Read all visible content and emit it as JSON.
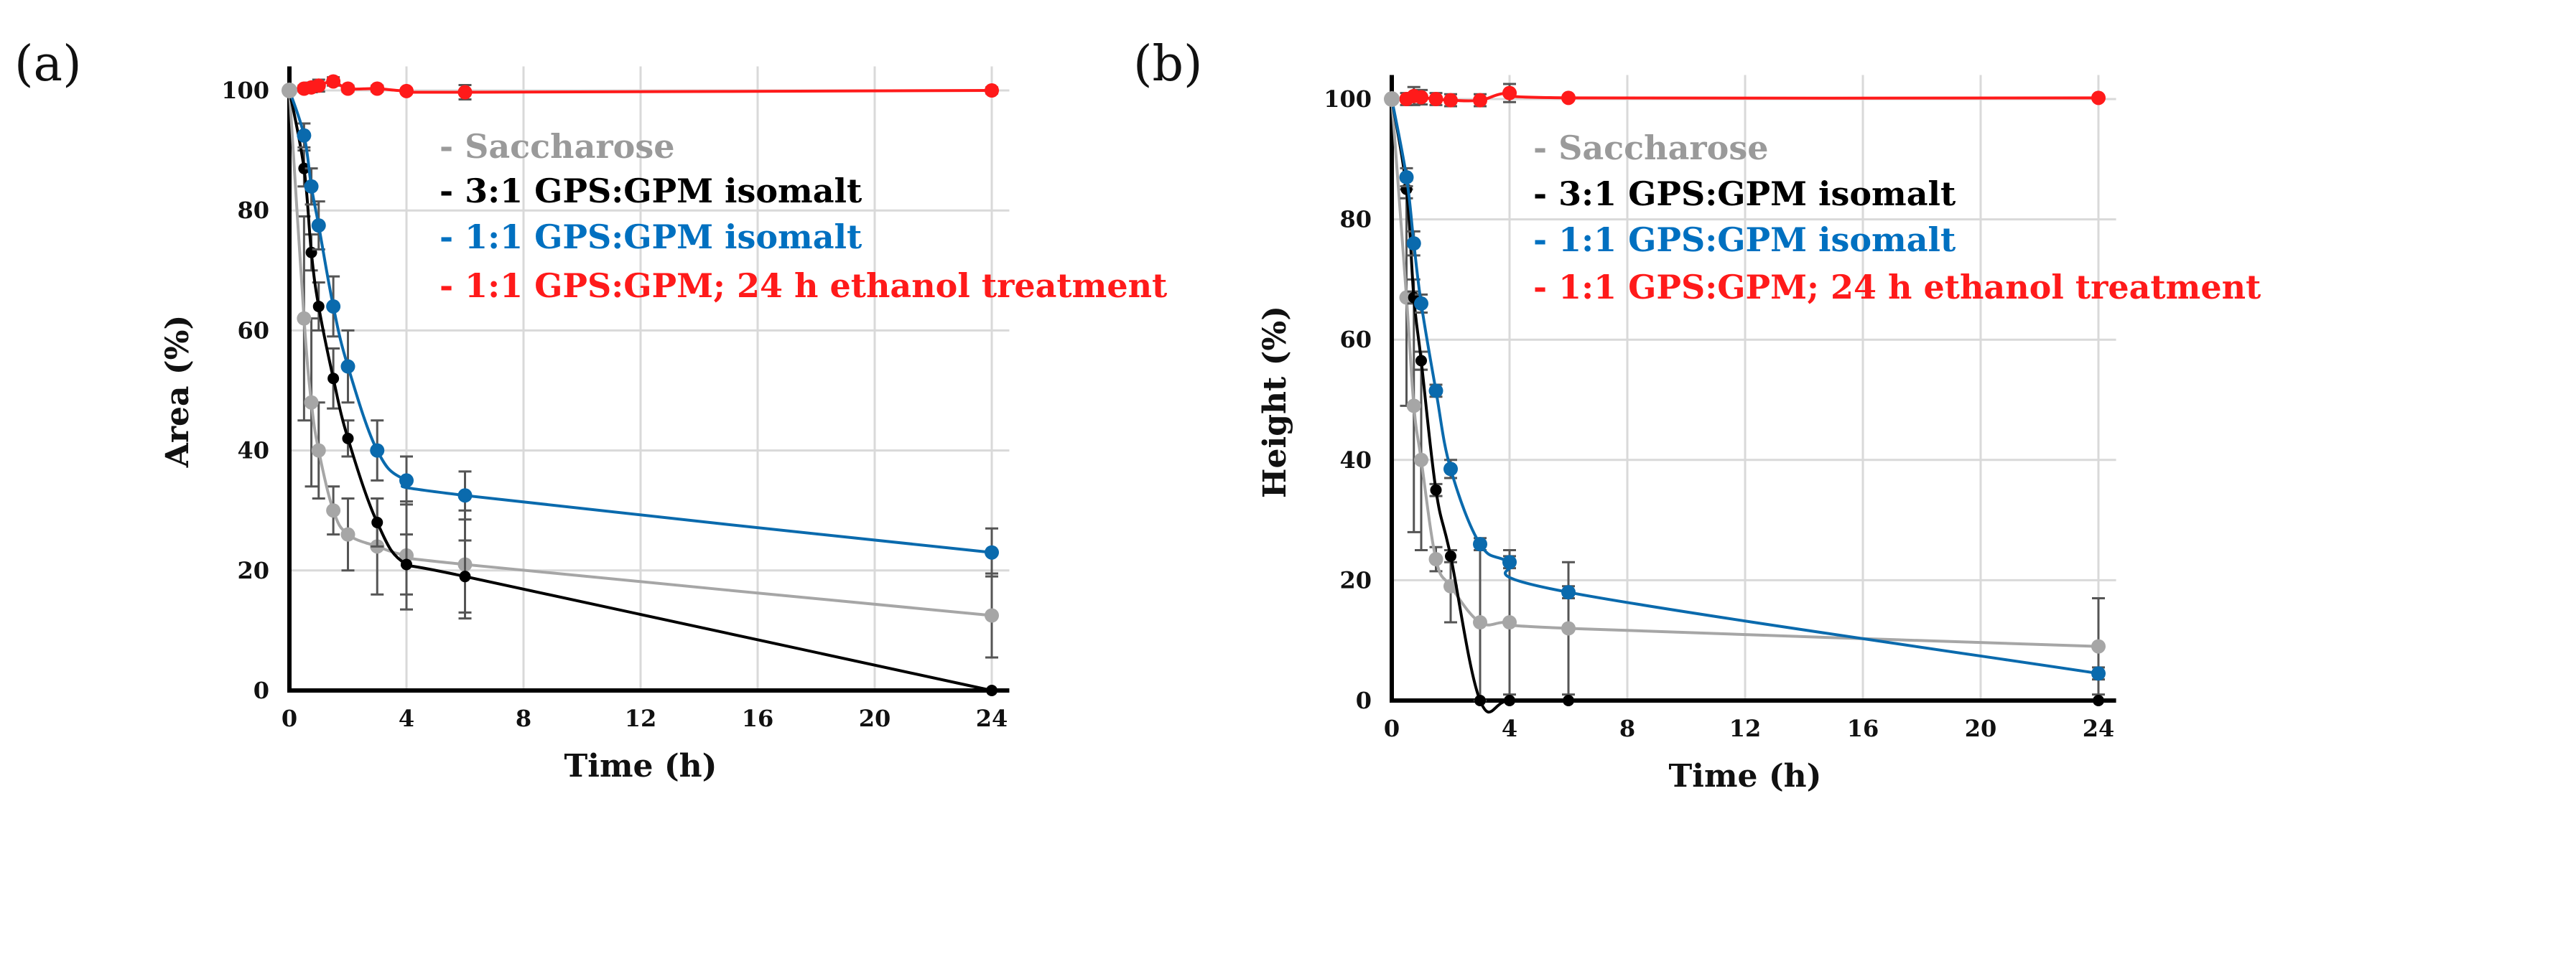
{
  "chart_data": [
    {
      "type": "line",
      "panel_label": "(a)",
      "xlabel": "Time (h)",
      "ylabel": "Area (%)",
      "xlim": [
        0,
        24.6
      ],
      "ylim": [
        0,
        100
      ],
      "xticks": [
        0,
        4,
        8,
        12,
        16,
        20,
        24
      ],
      "yticks": [
        0,
        20,
        40,
        60,
        80,
        100
      ],
      "grid": true,
      "legend_position": "top-center",
      "x": [
        0,
        0.5,
        0.75,
        1,
        1.5,
        2,
        3,
        4,
        6,
        24
      ],
      "series": [
        {
          "name": "- Saccharose",
          "color": "#a6a6a6",
          "values": [
            100,
            62,
            48,
            40,
            30,
            26,
            24,
            22.5,
            21,
            12.5
          ],
          "err": [
            0,
            17,
            14,
            8,
            4,
            6,
            8,
            9,
            9,
            7
          ]
        },
        {
          "name": "- 3:1 GPS:GPM isomalt",
          "color": "#000000",
          "values": [
            100,
            87,
            73,
            64,
            52,
            42,
            28,
            21,
            19,
            0
          ],
          "err": [
            0,
            3,
            3,
            4,
            5,
            3,
            4,
            5,
            6,
            0
          ]
        },
        {
          "name": "- 1:1 GPS:GPM isomalt",
          "color": "#0a6aad",
          "values": [
            100,
            92.5,
            84,
            77.5,
            64,
            54,
            40,
            35,
            32.5,
            23
          ],
          "err": [
            0,
            2,
            3,
            4,
            5,
            6,
            5,
            4,
            4,
            4
          ]
        },
        {
          "name": "- 1:1 GPS:GPM; 24 h ethanol treatment",
          "color": "#ff1a1a",
          "values": [
            100,
            100.3,
            100.5,
            100.8,
            101.5,
            100.3,
            100.3,
            99.9,
            99.7,
            100
          ],
          "err": [
            0,
            0.5,
            0.8,
            1,
            0.7,
            0.5,
            0.5,
            0.4,
            1.2,
            0.5
          ]
        }
      ]
    },
    {
      "type": "line",
      "panel_label": "(b)",
      "xlabel": "Time (h)",
      "ylabel": "Height (%)",
      "xlim": [
        0,
        24.6
      ],
      "ylim": [
        0,
        100
      ],
      "xticks": [
        0,
        4,
        8,
        12,
        16,
        20,
        24
      ],
      "yticks": [
        0,
        20,
        40,
        60,
        80,
        100
      ],
      "grid": true,
      "legend_position": "top-center",
      "x": [
        0,
        0.5,
        0.75,
        1,
        1.5,
        2,
        3,
        4,
        6,
        24
      ],
      "series": [
        {
          "name": "- Saccharose",
          "color": "#a6a6a6",
          "values": [
            100,
            67,
            49,
            40,
            23.5,
            19,
            13,
            13,
            12,
            9
          ],
          "err": [
            0,
            18,
            21,
            15,
            2,
            6,
            13,
            12,
            11,
            8
          ]
        },
        {
          "name": "- 3:1 GPS:GPM isomalt",
          "color": "#000000",
          "values": [
            100,
            85,
            67,
            56.5,
            35,
            24,
            0,
            0,
            0,
            0
          ],
          "err": [
            0,
            1.5,
            1,
            1.5,
            1,
            1,
            0,
            0,
            0,
            0
          ]
        },
        {
          "name": "- 1:1 GPS:GPM isomalt",
          "color": "#0a6aad",
          "values": [
            100,
            87,
            76,
            66,
            51.5,
            38.5,
            26,
            23,
            18,
            4.5
          ],
          "err": [
            0,
            1.5,
            2,
            1.5,
            1,
            1.5,
            1,
            1,
            1,
            1
          ]
        },
        {
          "name": "- 1:1 GPS:GPM; 24 h ethanol treatment",
          "color": "#ff1a1a",
          "values": [
            100,
            100,
            100.5,
            100.3,
            100,
            99.8,
            99.8,
            101,
            100.2,
            100.2
          ],
          "err": [
            0,
            1,
            1.5,
            1.2,
            1,
            1,
            1,
            1.5,
            0.3,
            0.3
          ]
        }
      ]
    }
  ]
}
